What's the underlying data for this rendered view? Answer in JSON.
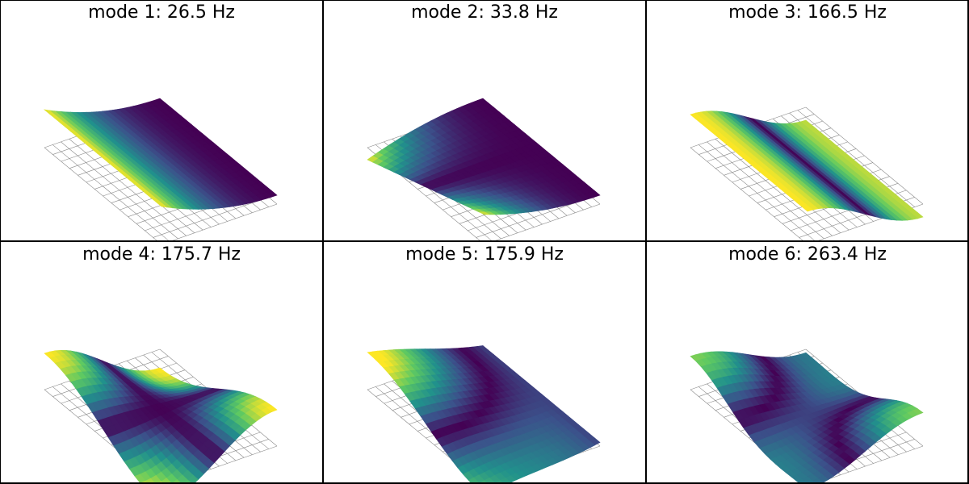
{
  "panels": [
    {
      "title": "mode 1: 26.5 Hz"
    },
    {
      "title": "mode 2: 33.8 Hz"
    },
    {
      "title": "mode 3: 166.5 Hz"
    },
    {
      "title": "mode 4: 175.7 Hz"
    },
    {
      "title": "mode 5: 175.9 Hz"
    },
    {
      "title": "mode 6: 263.4 Hz"
    }
  ],
  "colormap": [
    "#440154",
    "#3b528b",
    "#21918c",
    "#5ec962",
    "#fde725"
  ],
  "wireframe_color": "#8a8a8a",
  "divider_color": "#000000"
}
